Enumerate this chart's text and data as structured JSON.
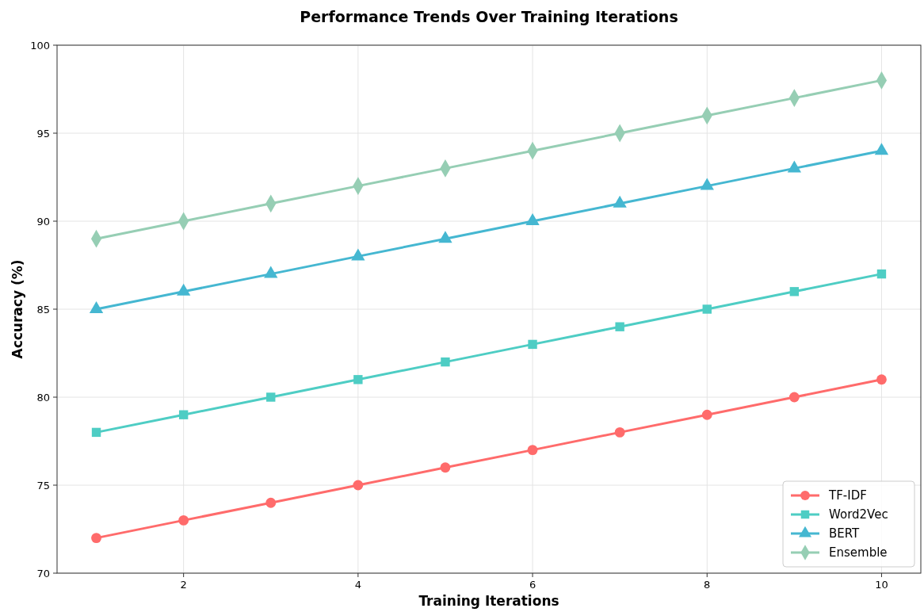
{
  "chart_data": {
    "type": "line",
    "title": "Performance Trends Over Training Iterations",
    "xlabel": "Training Iterations",
    "ylabel": "Accuracy (%)",
    "x": [
      1,
      2,
      3,
      4,
      5,
      6,
      7,
      8,
      9,
      10
    ],
    "series": [
      {
        "name": "TF-IDF",
        "color": "#ff6b6b",
        "marker": "circle",
        "values": [
          72,
          73,
          74,
          75,
          76,
          77,
          78,
          79,
          80,
          81
        ]
      },
      {
        "name": "Word2Vec",
        "color": "#4ecdc4",
        "marker": "square",
        "values": [
          78,
          79,
          80,
          81,
          82,
          83,
          84,
          85,
          86,
          87
        ]
      },
      {
        "name": "BERT",
        "color": "#45b7d1",
        "marker": "triangle",
        "values": [
          85,
          86,
          87,
          88,
          89,
          90,
          91,
          92,
          93,
          94
        ]
      },
      {
        "name": "Ensemble",
        "color": "#96ceb4",
        "marker": "diamond",
        "values": [
          89,
          90,
          91,
          92,
          93,
          94,
          95,
          96,
          97,
          98
        ]
      }
    ],
    "xlim": [
      0.55,
      10.45
    ],
    "xticks": [
      2,
      4,
      6,
      8,
      10
    ],
    "ylim": [
      70,
      100
    ],
    "yticks": [
      70,
      75,
      80,
      85,
      90,
      95,
      100
    ],
    "grid": true,
    "legend": "bottom right",
    "line_style": "solid"
  }
}
